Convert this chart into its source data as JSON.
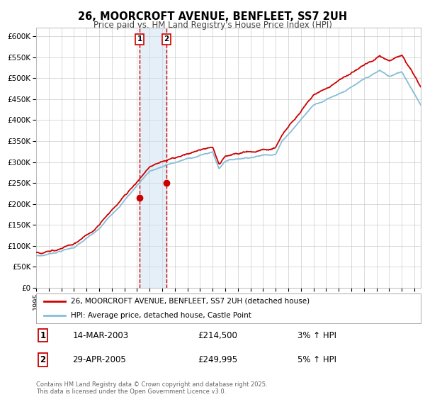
{
  "title": "26, MOORCROFT AVENUE, BENFLEET, SS7 2UH",
  "subtitle": "Price paid vs. HM Land Registry's House Price Index (HPI)",
  "legend_line1": "26, MOORCROFT AVENUE, BENFLEET, SS7 2UH (detached house)",
  "legend_line2": "HPI: Average price, detached house, Castle Point",
  "transaction1_date": "14-MAR-2003",
  "transaction1_price": 214500,
  "transaction1_hpi": "3% ↑ HPI",
  "transaction2_date": "29-APR-2005",
  "transaction2_price": 249995,
  "transaction2_hpi": "5% ↑ HPI",
  "footer": "Contains HM Land Registry data © Crown copyright and database right 2025.\nThis data is licensed under the Open Government Licence v3.0.",
  "price_line_color": "#cc0000",
  "hpi_line_color": "#87bdd8",
  "marker_color": "#cc0000",
  "vline_color": "#cc0000",
  "shade_color": "#cce0f0",
  "background_color": "#ffffff",
  "grid_color": "#cccccc",
  "ylim": [
    0,
    620000
  ],
  "yticks": [
    0,
    50000,
    100000,
    150000,
    200000,
    250000,
    300000,
    350000,
    400000,
    450000,
    500000,
    550000,
    600000
  ],
  "year_start": 1995,
  "year_end": 2025,
  "transaction1_year": 2003.2,
  "transaction2_year": 2005.33,
  "transaction1_marker_price": 214500,
  "transaction2_marker_price": 249995
}
